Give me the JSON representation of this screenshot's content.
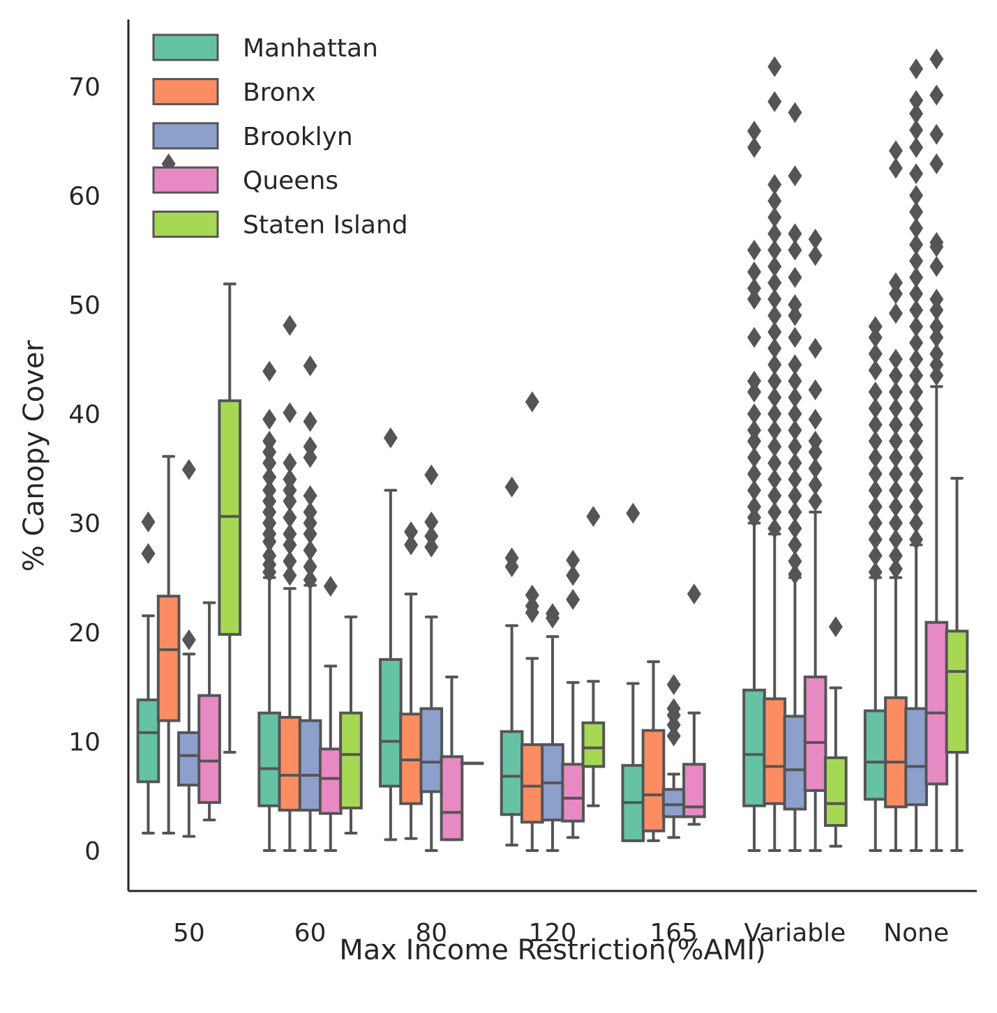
{
  "chart_data": {
    "type": "boxplot",
    "title": "",
    "xlabel": "Max Income Restriction(%AMI)",
    "ylabel": "% Canopy Cover",
    "categories": [
      "50",
      "60",
      "80",
      "120",
      "165",
      "Variable",
      "None"
    ],
    "yticks": [
      0,
      10,
      20,
      30,
      40,
      50,
      60,
      70
    ],
    "ylim": [
      -3.7,
      76.1
    ],
    "grid": false,
    "legend": {
      "placement": "top-left"
    },
    "series": [
      {
        "name": "Manhattan",
        "color": "#66c2a5",
        "boxes": [
          {
            "whisker_low": 1.6,
            "q1": 6.3,
            "median": 10.8,
            "q3": 13.8,
            "whisker_high": 21.5,
            "outliers": [
              27.2,
              30.1
            ]
          },
          {
            "whisker_low": 0.0,
            "q1": 4.1,
            "median": 7.5,
            "q3": 12.6,
            "whisker_high": 25.0,
            "outliers": [
              25.5,
              26.2,
              27.0,
              28.3,
              29.0,
              30.0,
              31.0,
              32.0,
              33.0,
              34.2,
              35.5,
              36.5,
              37.5,
              39.5,
              43.9
            ]
          },
          {
            "whisker_low": 1.0,
            "q1": 5.9,
            "median": 10.0,
            "q3": 17.5,
            "whisker_high": 33.0,
            "outliers": [
              37.8
            ]
          },
          {
            "whisker_low": 0.5,
            "q1": 3.3,
            "median": 6.8,
            "q3": 10.9,
            "whisker_high": 20.6,
            "outliers": [
              26.0,
              26.8,
              33.3
            ]
          },
          {
            "whisker_low": 0.9,
            "q1": 0.9,
            "median": 4.4,
            "q3": 7.8,
            "whisker_high": 15.3,
            "outliers": [
              30.9
            ]
          },
          {
            "whisker_low": 0.0,
            "q1": 4.1,
            "median": 8.8,
            "q3": 14.7,
            "whisker_high": 30.0,
            "outliers": [
              30.5,
              31.5,
              33.0,
              34.5,
              36.0,
              37.5,
              38.5,
              40.0,
              42.0,
              43.0,
              47.0,
              50.5,
              51.5,
              53.0,
              55.0,
              64.4,
              65.9
            ]
          },
          {
            "whisker_low": 0.0,
            "q1": 4.7,
            "median": 8.1,
            "q3": 12.8,
            "whisker_high": 25.0,
            "outliers": [
              25.5,
              27.0,
              28.5,
              30.0,
              31.5,
              33.0,
              34.5,
              36.0,
              37.5,
              39.0,
              40.5,
              42.0,
              44.0,
              45.5,
              47.0,
              48.0
            ]
          }
        ]
      },
      {
        "name": "Bronx",
        "color": "#fc8d62",
        "boxes": [
          {
            "whisker_low": 1.6,
            "q1": 11.9,
            "median": 18.4,
            "q3": 23.3,
            "whisker_high": 36.1,
            "outliers": [
              62.9
            ]
          },
          {
            "whisker_low": 0.0,
            "q1": 3.7,
            "median": 6.9,
            "q3": 12.2,
            "whisker_high": 24.0,
            "outliers": [
              25.2,
              26.5,
              28.0,
              29.0,
              30.5,
              32.0,
              33.0,
              34.0,
              35.5,
              40.1,
              48.1
            ]
          },
          {
            "whisker_low": 1.1,
            "q1": 4.3,
            "median": 8.3,
            "q3": 12.5,
            "whisker_high": 23.5,
            "outliers": [
              28.0,
              29.2
            ]
          },
          {
            "whisker_low": 0.0,
            "q1": 2.6,
            "median": 5.9,
            "q3": 9.7,
            "whisker_high": 17.6,
            "outliers": [
              21.8,
              22.4,
              23.4,
              41.1
            ]
          },
          {
            "whisker_low": 0.9,
            "q1": 1.8,
            "median": 5.1,
            "q3": 11.0,
            "whisker_high": 17.3,
            "outliers": []
          },
          {
            "whisker_low": 0.0,
            "q1": 4.3,
            "median": 7.7,
            "q3": 13.9,
            "whisker_high": 29.0,
            "outliers": [
              29.5,
              31.0,
              32.5,
              34.0,
              35.5,
              37.0,
              38.5,
              40.0,
              41.5,
              43.0,
              44.5,
              46.0,
              47.5,
              49.0,
              50.5,
              52.0,
              53.5,
              55.0,
              56.5,
              58.0,
              59.5,
              61.0,
              68.6,
              71.8
            ]
          },
          {
            "whisker_low": 0.0,
            "q1": 4.0,
            "median": 8.1,
            "q3": 14.0,
            "whisker_high": 25.0,
            "outliers": [
              25.8,
              27.0,
              28.5,
              30.0,
              31.5,
              33.0,
              34.5,
              36.0,
              37.5,
              39.0,
              40.5,
              42.0,
              43.5,
              45.0,
              49.2,
              51.0,
              52.0,
              62.5,
              64.1
            ]
          }
        ]
      },
      {
        "name": "Brooklyn",
        "color": "#8da0cb",
        "boxes": [
          {
            "whisker_low": 1.3,
            "q1": 6.0,
            "median": 8.7,
            "q3": 10.8,
            "whisker_high": 18.0,
            "outliers": [
              19.3,
              34.9
            ]
          },
          {
            "whisker_low": 0.0,
            "q1": 3.7,
            "median": 6.9,
            "q3": 11.9,
            "whisker_high": 24.3,
            "outliers": [
              24.8,
              26.0,
              27.5,
              29.0,
              30.0,
              31.0,
              32.5,
              36.0,
              37.0,
              39.3,
              44.4
            ]
          },
          {
            "whisker_low": 0.0,
            "q1": 5.4,
            "median": 8.1,
            "q3": 13.0,
            "whisker_high": 21.4,
            "outliers": [
              27.8,
              28.8,
              30.1,
              34.4
            ]
          },
          {
            "whisker_low": 0.0,
            "q1": 2.8,
            "median": 6.2,
            "q3": 9.7,
            "whisker_high": 19.6,
            "outliers": [
              21.3,
              21.7
            ]
          },
          {
            "whisker_low": 1.2,
            "q1": 3.1,
            "median": 4.2,
            "q3": 5.6,
            "whisker_high": 7.0,
            "outliers": [
              10.5,
              11.5,
              12.4,
              13.0,
              15.2
            ]
          },
          {
            "whisker_low": 0.0,
            "q1": 3.8,
            "median": 7.4,
            "q3": 12.3,
            "whisker_high": 25.0,
            "outliers": [
              25.3,
              26.5,
              28.0,
              29.5,
              31.0,
              32.5,
              34.0,
              35.5,
              37.0,
              38.5,
              40.0,
              41.5,
              43.0,
              44.5,
              47.0,
              49.0,
              50.0,
              52.5,
              55.0,
              56.5,
              61.8,
              67.6
            ]
          },
          {
            "whisker_low": 0.0,
            "q1": 4.2,
            "median": 7.7,
            "q3": 13.0,
            "whisker_high": 28.0,
            "outliers": [
              28.5,
              30.0,
              31.5,
              33.0,
              34.5,
              36.0,
              37.5,
              39.0,
              40.5,
              42.0,
              43.5,
              45.0,
              46.5,
              48.0,
              49.5,
              51.0,
              52.5,
              54.0,
              55.5,
              57.0,
              58.5,
              60.0,
              62.0,
              64.4,
              66.0,
              67.5,
              68.7,
              71.6
            ]
          }
        ]
      },
      {
        "name": "Queens",
        "color": "#e78ac3",
        "boxes": [
          {
            "whisker_low": 2.8,
            "q1": 4.4,
            "median": 8.2,
            "q3": 14.2,
            "whisker_high": 22.7,
            "outliers": []
          },
          {
            "whisker_low": 0.0,
            "q1": 3.4,
            "median": 6.6,
            "q3": 9.3,
            "whisker_high": 16.9,
            "outliers": [
              24.2
            ]
          },
          {
            "whisker_low": 1.0,
            "q1": 1.0,
            "median": 3.5,
            "q3": 8.6,
            "whisker_high": 15.9,
            "outliers": []
          },
          {
            "whisker_low": 1.2,
            "q1": 2.7,
            "median": 4.8,
            "q3": 7.9,
            "whisker_high": 15.4,
            "outliers": [
              23.0,
              25.2,
              26.6
            ]
          },
          {
            "whisker_low": 2.4,
            "q1": 3.1,
            "median": 4.0,
            "q3": 7.9,
            "whisker_high": 12.6,
            "outliers": [
              23.5
            ]
          },
          {
            "whisker_low": 0.0,
            "q1": 5.5,
            "median": 9.9,
            "q3": 15.9,
            "whisker_high": 31.0,
            "outliers": [
              32.0,
              33.5,
              35.0,
              36.5,
              37.5,
              39.5,
              42.2,
              46.0,
              54.5,
              56.0
            ]
          },
          {
            "whisker_low": 0.0,
            "q1": 6.1,
            "median": 12.6,
            "q3": 20.9,
            "whisker_high": 42.5,
            "outliers": [
              43.5,
              44.5,
              45.5,
              47.0,
              48.0,
              49.5,
              50.5,
              53.5,
              55.3,
              55.7,
              62.9,
              65.6,
              69.2,
              72.5
            ]
          }
        ]
      },
      {
        "name": "Staten Island",
        "color": "#a6d854",
        "boxes": [
          {
            "whisker_low": 9.0,
            "q1": 19.8,
            "median": 30.6,
            "q3": 41.2,
            "whisker_high": 51.9,
            "outliers": []
          },
          {
            "whisker_low": 1.6,
            "q1": 3.9,
            "median": 8.8,
            "q3": 12.6,
            "whisker_high": 21.4,
            "outliers": []
          },
          {
            "whisker_low": 8.0,
            "q1": 8.0,
            "median": 8.0,
            "q3": 8.0,
            "whisker_high": 8.0,
            "outliers": []
          },
          {
            "whisker_low": 4.1,
            "q1": 7.7,
            "median": 9.4,
            "q3": 11.7,
            "whisker_high": 15.5,
            "outliers": [
              30.6
            ]
          },
          {
            "whisker_low": null,
            "q1": null,
            "median": null,
            "q3": null,
            "whisker_high": null,
            "outliers": []
          },
          {
            "whisker_low": 0.4,
            "q1": 2.3,
            "median": 4.3,
            "q3": 8.5,
            "whisker_high": 14.9,
            "outliers": [
              20.5
            ]
          },
          {
            "whisker_low": 0.0,
            "q1": 9.0,
            "median": 16.4,
            "q3": 20.1,
            "whisker_high": 34.1,
            "outliers": []
          }
        ]
      }
    ]
  }
}
